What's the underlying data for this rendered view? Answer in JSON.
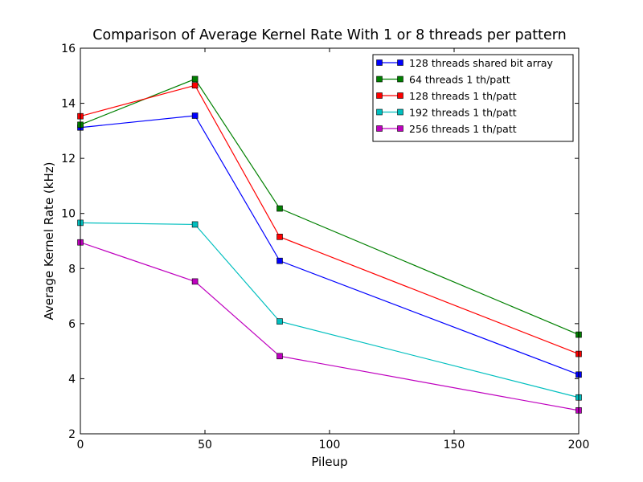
{
  "chart_data": {
    "type": "line",
    "title": "Comparison of Average Kernel Rate With 1 or 8 threads per pattern",
    "xlabel": "Pileup",
    "ylabel": "Average Kernel Rate (kHz)",
    "xlim": [
      0,
      200
    ],
    "ylim": [
      2,
      16
    ],
    "x_ticks": [
      0,
      50,
      100,
      150,
      200
    ],
    "y_ticks": [
      2,
      4,
      6,
      8,
      10,
      12,
      14,
      16
    ],
    "x_tick_labels": [
      "0",
      "50",
      "100",
      "150",
      "200"
    ],
    "y_tick_labels": [
      "2",
      "4",
      "6",
      "8",
      "10",
      "12",
      "14",
      "16"
    ],
    "grid": false,
    "legend_position": "top-right",
    "x": [
      0,
      46,
      80,
      200
    ],
    "series": [
      {
        "name": "128 threads shared bit array",
        "color": "#0000ff",
        "values": [
          13.12,
          13.55,
          8.28,
          4.15
        ]
      },
      {
        "name": "64 threads 1 th/patt",
        "color": "#008000",
        "values": [
          13.22,
          14.88,
          10.18,
          5.6
        ]
      },
      {
        "name": "128 threads 1 th/patt",
        "color": "#ff0000",
        "values": [
          13.53,
          14.65,
          9.15,
          4.9
        ]
      },
      {
        "name": "192 threads 1 th/patt",
        "color": "#00bfbf",
        "values": [
          9.66,
          9.6,
          6.08,
          3.32
        ]
      },
      {
        "name": "256 threads 1 th/patt",
        "color": "#bf00bf",
        "values": [
          8.95,
          7.53,
          4.82,
          2.85
        ]
      }
    ]
  }
}
